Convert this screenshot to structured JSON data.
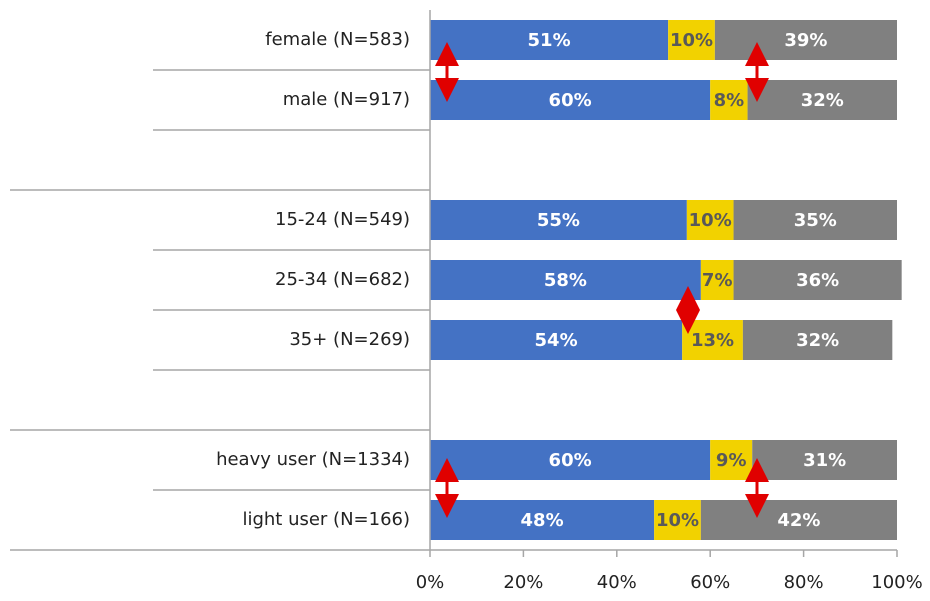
{
  "chart_data": {
    "type": "stacked-barh",
    "categories": [
      "female (N=583)",
      "male (N=917)",
      null,
      "15-24 (N=549)",
      "25-34 (N=682)",
      "35+ (N=269)",
      null,
      "heavy user (N=1334)",
      "light user (N=166)"
    ],
    "series": [
      {
        "color": "#4472c4",
        "values": [
          51,
          60,
          null,
          55,
          58,
          54,
          null,
          60,
          48
        ],
        "value_labels": [
          "51%",
          "60%",
          null,
          "55%",
          "58%",
          "54%",
          null,
          "60%",
          "48%"
        ],
        "label_color": "#ffffff"
      },
      {
        "color": "#f2d200",
        "values": [
          10,
          8,
          null,
          10,
          7,
          13,
          null,
          9,
          10
        ],
        "value_labels": [
          "10%",
          "8%",
          null,
          "10%",
          "7%",
          "13%",
          null,
          "9%",
          "10%"
        ],
        "label_color": "#595959"
      },
      {
        "color": "#808080",
        "values": [
          39,
          32,
          null,
          35,
          36,
          32,
          null,
          31,
          42
        ],
        "value_labels": [
          "39%",
          "32%",
          null,
          "35%",
          "36%",
          "32%",
          null,
          "31%",
          "42%"
        ],
        "label_color": "#ffffff"
      }
    ],
    "xlim": [
      0,
      100
    ],
    "xticks": [
      {
        "value": 0,
        "label": "0%"
      },
      {
        "value": 20,
        "label": "20%"
      },
      {
        "value": 40,
        "label": "40%"
      },
      {
        "value": 60,
        "label": "60%"
      },
      {
        "value": 80,
        "label": "80%"
      },
      {
        "value": 100,
        "label": "100%"
      }
    ]
  }
}
